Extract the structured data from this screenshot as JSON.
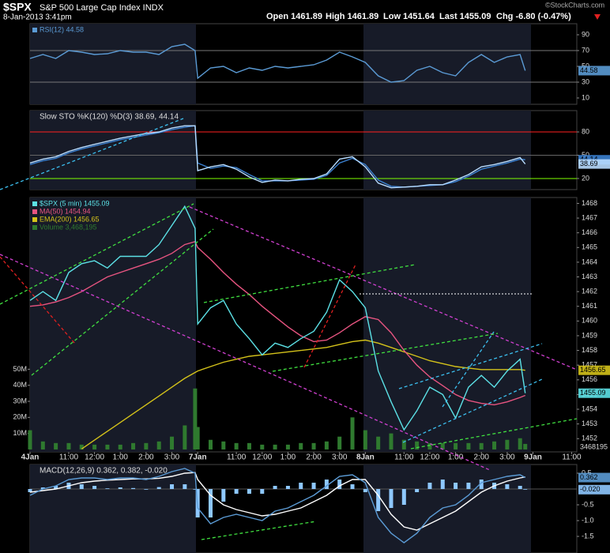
{
  "header": {
    "symbol": "$SPX",
    "name": "S&P 500 Large Cap Index INDX",
    "date": "8-Jan-2013 3:41pm",
    "open": "Open 1461.89",
    "high": "High 1461.89",
    "low": "Low 1451.64",
    "last": "Last 1455.09",
    "chg": "Chg -6.80 (-0.47%)",
    "copyright": "©StockCharts.com"
  },
  "chart_data": [
    {
      "type": "line",
      "title": null,
      "x": [
        0,
        0.5,
        1,
        1.5,
        2,
        2.5,
        3,
        3.5,
        4,
        4.5,
        5,
        5.5,
        6,
        6.4,
        6.5,
        7,
        7.5,
        8,
        8.5,
        9,
        9.5,
        10,
        10.5,
        11,
        11.5,
        12,
        12.5,
        13,
        13.5,
        14,
        14.5,
        15,
        15.5,
        16,
        16.5,
        17,
        17.5,
        18,
        18.5,
        19,
        19.2
      ],
      "series": [
        {
          "name": "RSI(12) 44.58",
          "color": "#5b9bd5",
          "label_last": true,
          "values": [
            60,
            65,
            60,
            70,
            68,
            65,
            66,
            70,
            68,
            68,
            65,
            75,
            78,
            70,
            35,
            48,
            50,
            42,
            48,
            45,
            50,
            48,
            50,
            52,
            58,
            68,
            62,
            55,
            38,
            30,
            32,
            45,
            50,
            42,
            38,
            55,
            65,
            55,
            62,
            65,
            44.58
          ]
        }
      ],
      "ylim": [
        2,
        104
      ],
      "yticks": [
        90,
        70,
        50,
        30,
        10
      ],
      "levels": [
        {
          "value": 70,
          "color": "#777"
        },
        {
          "value": 30,
          "color": "#777"
        }
      ]
    },
    {
      "type": "line",
      "title": "Slow STO %K(120) %D(3) 38.69, 44.14",
      "x": [
        0,
        0.5,
        1,
        1.5,
        2,
        2.5,
        3,
        3.5,
        4,
        4.5,
        5,
        5.5,
        6,
        6.4,
        6.5,
        7,
        7.5,
        8,
        8.5,
        9,
        9.5,
        10,
        10.5,
        11,
        11.5,
        12,
        12.5,
        13,
        13.5,
        14,
        14.5,
        15,
        15.5,
        16,
        16.5,
        17,
        17.5,
        18,
        18.5,
        19,
        19.2
      ],
      "series": [
        {
          "color": "#3a7fcf",
          "label_last": true,
          "values": [
            38,
            43,
            46,
            53,
            58,
            62,
            66,
            70,
            73,
            76,
            79,
            83,
            86,
            88,
            40,
            33,
            36,
            34,
            25,
            17,
            17,
            17,
            18,
            19,
            24,
            40,
            46,
            38,
            18,
            10,
            9,
            10,
            11,
            12,
            16,
            23,
            32,
            36,
            40,
            45,
            44.14
          ]
        },
        {
          "color": "#b8dcff",
          "label_last": true,
          "values": [
            40,
            45,
            48,
            55,
            60,
            64,
            68,
            72,
            75,
            78,
            80,
            85,
            88,
            88,
            30,
            35,
            38,
            32,
            22,
            15,
            18,
            17,
            19,
            20,
            26,
            45,
            48,
            35,
            14,
            8,
            9,
            10,
            12,
            12,
            18,
            25,
            35,
            38,
            42,
            47,
            38.69
          ]
        }
      ],
      "ylim": [
        5.7,
        107.5
      ],
      "yticks": [
        80,
        50,
        20
      ],
      "levels": [
        {
          "value": 80,
          "color": "#ff2020"
        },
        {
          "value": 50,
          "color": "#666"
        },
        {
          "value": 20,
          "color": "#7fff00"
        }
      ]
    },
    {
      "type": "line",
      "title": null,
      "x": [
        0,
        0.5,
        1,
        1.5,
        2,
        2.5,
        3,
        3.5,
        4,
        4.5,
        5,
        5.5,
        6,
        6.4,
        6.5,
        7,
        7.5,
        8,
        8.5,
        9,
        9.5,
        10,
        10.5,
        11,
        11.5,
        12,
        12.5,
        13,
        13.5,
        14,
        14.5,
        15,
        15.5,
        16,
        16.5,
        17,
        17.5,
        18,
        18.5,
        19,
        19.2
      ],
      "xlim": [
        0,
        21.2
      ],
      "xticks": [
        {
          "value": 0,
          "label": "4Jan"
        },
        {
          "value": 1.5,
          "label": "11:00"
        },
        {
          "value": 2.5,
          "label": "12:00"
        },
        {
          "value": 3.5,
          "label": "1:00"
        },
        {
          "value": 4.5,
          "label": "2:00"
        },
        {
          "value": 5.5,
          "label": "3:00"
        },
        {
          "value": 6.5,
          "label": "7Jan"
        },
        {
          "value": 8,
          "label": "11:00"
        },
        {
          "value": 9,
          "label": "12:00"
        },
        {
          "value": 10,
          "label": "1:00"
        },
        {
          "value": 11,
          "label": "2:00"
        },
        {
          "value": 12,
          "label": "3:00"
        },
        {
          "value": 13,
          "label": "8Jan"
        },
        {
          "value": 14.5,
          "label": "11:00"
        },
        {
          "value": 15.5,
          "label": "12:00"
        },
        {
          "value": 16.5,
          "label": "1:00"
        },
        {
          "value": 17.5,
          "label": "2:00"
        },
        {
          "value": 18.5,
          "label": "3:00"
        },
        {
          "value": 19.5,
          "label": "9Jan"
        },
        {
          "value": 21,
          "label": "11:00"
        }
      ],
      "series": [
        {
          "name": "Volume 3,468,195",
          "type": "bar",
          "axis": "y2",
          "color": "#2f7a2f",
          "label_last": true,
          "values": [
            12000000,
            5000000,
            4000000,
            4000000,
            3000000,
            3000000,
            3000000,
            3000000,
            4000000,
            4000000,
            5000000,
            8000000,
            15000000,
            38000000,
            14000000,
            6000000,
            5000000,
            4000000,
            4000000,
            3000000,
            3000000,
            3000000,
            4000000,
            4000000,
            5000000,
            8000000,
            20000000,
            12000000,
            8000000,
            10000000,
            6000000,
            5000000,
            4000000,
            4000000,
            4000000,
            4000000,
            4000000,
            5000000,
            6000000,
            7000000,
            3468195
          ]
        },
        {
          "name": "EMA(200) 1456.65",
          "color": "#d4c21a",
          "label_last": true,
          "values": [
            null,
            null,
            null,
            null,
            1451.3,
            1451.9,
            1452.5,
            1453.1,
            1453.7,
            1454.3,
            1454.9,
            1455.5,
            1456.1,
            1456.5,
            1456.6,
            1456.9,
            1457.2,
            1457.4,
            1457.6,
            1457.7,
            1457.8,
            1457.9,
            1458,
            1458.1,
            1458.2,
            1458.4,
            1458.6,
            1458.7,
            1458.5,
            1458.2,
            1457.9,
            1457.6,
            1457.3,
            1457.1,
            1456.9,
            1456.8,
            1456.7,
            1456.7,
            1456.7,
            1456.7,
            1456.65
          ]
        },
        {
          "name": "MA(50) 1454.94",
          "color": "#e75480",
          "values": [
            1461,
            1461.1,
            1461.3,
            1461.6,
            1462,
            1462.5,
            1463,
            1463.3,
            1463.6,
            1463.9,
            1464.2,
            1464.6,
            1465.2,
            1465.4,
            1465,
            1464.2,
            1463.3,
            1462.5,
            1461.8,
            1461,
            1460.3,
            1459.6,
            1459,
            1458.6,
            1458.7,
            1459.2,
            1459.8,
            1460.3,
            1460.1,
            1459.2,
            1458,
            1457,
            1456.2,
            1455.6,
            1455,
            1454.6,
            1454.4,
            1454.3,
            1454.5,
            1454.8,
            1454.94
          ]
        },
        {
          "name": "$SPX (5 min) 1455.09",
          "color": "#5ce1e6",
          "label_last": true,
          "values": [
            1461.4,
            1462,
            1461.4,
            1463.3,
            1463.9,
            1464.1,
            1463.6,
            1464.4,
            1464.4,
            1464.4,
            1465.2,
            1466.5,
            1467.8,
            1466.3,
            1459.8,
            1460.9,
            1461.4,
            1459.8,
            1458.8,
            1457.7,
            1458.5,
            1458.2,
            1458.8,
            1459.3,
            1460.6,
            1462.8,
            1462,
            1460.9,
            1456.6,
            1454.5,
            1452.6,
            1453.9,
            1455.5,
            1455,
            1453.4,
            1455.5,
            1456.3,
            1455.5,
            1456.6,
            1457.4,
            1455.09
          ]
        }
      ],
      "ylim": [
        1451.1,
        1468.4
      ],
      "yticks": [
        1452,
        1453,
        1454,
        1455,
        1456,
        1457,
        1458,
        1459,
        1460,
        1461,
        1462,
        1463,
        1464,
        1465,
        1466,
        1467,
        1468
      ],
      "y2lim": [
        -1500000,
        157000000
      ],
      "y2ticks": [
        {
          "value": 10000000,
          "label": "10M"
        },
        {
          "value": 20000000,
          "label": "20M"
        },
        {
          "value": 30000000,
          "label": "30M"
        },
        {
          "value": 40000000,
          "label": "40M"
        },
        {
          "value": 50000000,
          "label": "50M"
        }
      ]
    },
    {
      "type": "line",
      "title": "MACD(12,26,9) 0.362, 0.382, -0.020",
      "x": [
        0,
        0.5,
        1,
        1.5,
        2,
        2.5,
        3,
        3.5,
        4,
        4.5,
        5,
        5.5,
        6,
        6.4,
        6.5,
        7,
        7.5,
        8,
        8.5,
        9,
        9.5,
        10,
        10.5,
        11,
        11.5,
        12,
        12.5,
        13,
        13.5,
        14,
        14.5,
        15,
        15.5,
        16,
        16.5,
        17,
        17.5,
        18,
        18.5,
        19,
        19.2
      ],
      "series": [
        {
          "type": "bar",
          "color": "#8ec8ff",
          "label_last": true,
          "last_label": "-0.020",
          "values": [
            -0.1,
            0.05,
            0.1,
            0.2,
            0.15,
            0.1,
            0.02,
            0.05,
            0.03,
            -0.02,
            0.06,
            0.15,
            0.15,
            -0.02,
            -0.9,
            -0.9,
            -0.4,
            -0.15,
            -0.15,
            -0.15,
            0.1,
            0.1,
            0.2,
            0.2,
            0.3,
            0.3,
            0.15,
            -0.1,
            -0.7,
            -0.6,
            -0.5,
            -0.1,
            0.2,
            0.3,
            0.2,
            0.2,
            0.3,
            0.2,
            0.15,
            0.1,
            -0.02
          ]
        },
        {
          "color": "#ffffff",
          "values": [
            -0.1,
            -0.05,
            0,
            0.1,
            0.2,
            0.25,
            0.28,
            0.3,
            0.32,
            0.32,
            0.34,
            0.4,
            0.5,
            0.52,
            0.3,
            -0.2,
            -0.5,
            -0.65,
            -0.75,
            -0.85,
            -0.8,
            -0.7,
            -0.6,
            -0.4,
            -0.2,
            0.1,
            0.3,
            0.3,
            -0.2,
            -0.8,
            -1.2,
            -1.3,
            -1.1,
            -0.9,
            -0.7,
            -0.4,
            -0.1,
            0.1,
            0.25,
            0.35,
            0.382
          ]
        },
        {
          "color": "#5b9bd5",
          "label_last": true,
          "values": [
            -0.2,
            0,
            0.1,
            0.3,
            0.35,
            0.35,
            0.3,
            0.35,
            0.35,
            0.3,
            0.4,
            0.55,
            0.65,
            0.5,
            -0.6,
            -1.1,
            -0.9,
            -0.8,
            -0.9,
            -1.0,
            -0.7,
            -0.6,
            -0.4,
            -0.2,
            0.1,
            0.4,
            0.45,
            0.2,
            -0.9,
            -1.4,
            -1.7,
            -1.4,
            -0.9,
            -0.6,
            -0.5,
            -0.2,
            0.2,
            0.3,
            0.4,
            0.45,
            0.362
          ]
        }
      ],
      "ylim": [
        -2.025,
        0.775
      ],
      "yticks": [
        0.5,
        -0.5,
        {
          "value": -1,
          "label": "-1.0"
        },
        {
          "value": -1.5,
          "label": "-1.5"
        }
      ],
      "levels": [
        {
          "value": 0,
          "color": "#555"
        }
      ]
    }
  ]
}
